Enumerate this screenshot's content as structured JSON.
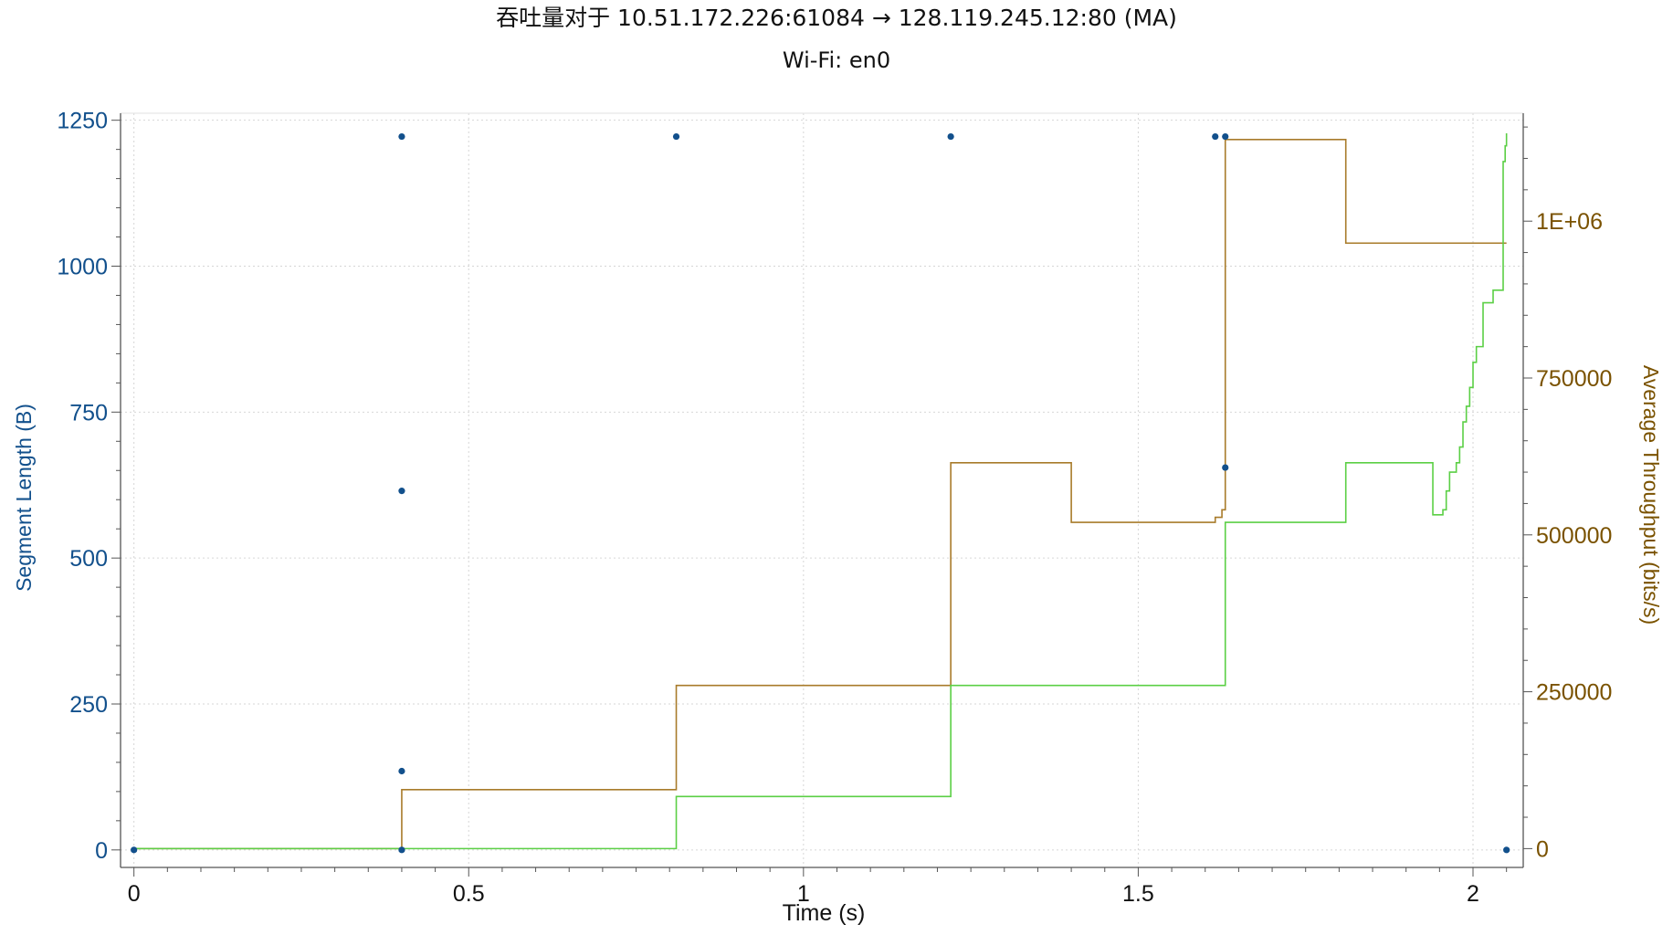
{
  "chart_data": {
    "type": "line",
    "title": "吞吐量对于 10.51.172.226:61084 → 128.119.245.12:80 (MA)",
    "subtitle": "Wi-Fi: en0",
    "xlabel": "Time (s)",
    "ylabel_left": "Segment Length (B)",
    "ylabel_right": "Average Throughput (bits/s)",
    "xlim": [
      -0.02,
      2.075
    ],
    "ylim_left": [
      -30,
      1262
    ],
    "ylim_right": [
      -30000,
      1172000
    ],
    "x_ticks": [
      {
        "value": 0,
        "label": "0"
      },
      {
        "value": 0.5,
        "label": "0.5"
      },
      {
        "value": 1,
        "label": "1"
      },
      {
        "value": 1.5,
        "label": "1.5"
      },
      {
        "value": 2,
        "label": "2"
      }
    ],
    "left_ticks": [
      {
        "value": 0,
        "label": "0"
      },
      {
        "value": 250,
        "label": "250"
      },
      {
        "value": 500,
        "label": "500"
      },
      {
        "value": 750,
        "label": "750"
      },
      {
        "value": 1000,
        "label": "1000"
      },
      {
        "value": 1250,
        "label": "1250"
      }
    ],
    "right_ticks": [
      {
        "value": 0,
        "label": "0"
      },
      {
        "value": 250000,
        "label": "250000"
      },
      {
        "value": 500000,
        "label": "500000"
      },
      {
        "value": 750000,
        "label": "750000"
      },
      {
        "value": 1000000,
        "label": "1E+06"
      }
    ],
    "grid": true,
    "colors": {
      "segments": "#12508c",
      "throughput": "#a87b2a",
      "goodput": "#5bcf45",
      "grid": "#d6d6d6",
      "left_axis": "#12508c",
      "right_axis": "#7a5200"
    },
    "segments": [
      {
        "x": 0.0,
        "y": 0
      },
      {
        "x": 0.4,
        "y": 0
      },
      {
        "x": 0.4,
        "y": 135
      },
      {
        "x": 0.4,
        "y": 615
      },
      {
        "x": 0.4,
        "y": 1222
      },
      {
        "x": 0.81,
        "y": 1222
      },
      {
        "x": 1.22,
        "y": 1222
      },
      {
        "x": 1.615,
        "y": 1222
      },
      {
        "x": 1.63,
        "y": 1222
      },
      {
        "x": 1.63,
        "y": 655
      },
      {
        "x": 2.05,
        "y": 0
      }
    ],
    "series": [
      {
        "axis": "right",
        "step": true,
        "x": [
          0.0,
          0.4,
          0.81,
          1.22,
          1.4,
          1.615,
          1.625,
          1.63,
          1.81,
          2.05
        ],
        "y": [
          0,
          94000,
          260000,
          615000,
          520000,
          528000,
          540000,
          1130000,
          965000,
          965000
        ]
      },
      {
        "axis": "right",
        "step": true,
        "x": [
          0.0,
          0.4,
          0.81,
          1.22,
          1.63,
          1.81,
          1.94,
          1.955,
          1.96,
          1.965,
          1.975,
          1.98,
          1.985,
          1.99,
          1.995,
          2.0,
          2.005,
          2.015,
          2.03,
          2.045,
          2.048,
          2.05
        ],
        "y": [
          0,
          0,
          83000,
          260000,
          520000,
          615000,
          532000,
          540000,
          570000,
          600000,
          615000,
          640000,
          680000,
          705000,
          735000,
          775000,
          800000,
          870000,
          890000,
          1095000,
          1120000,
          1140000
        ]
      }
    ]
  }
}
